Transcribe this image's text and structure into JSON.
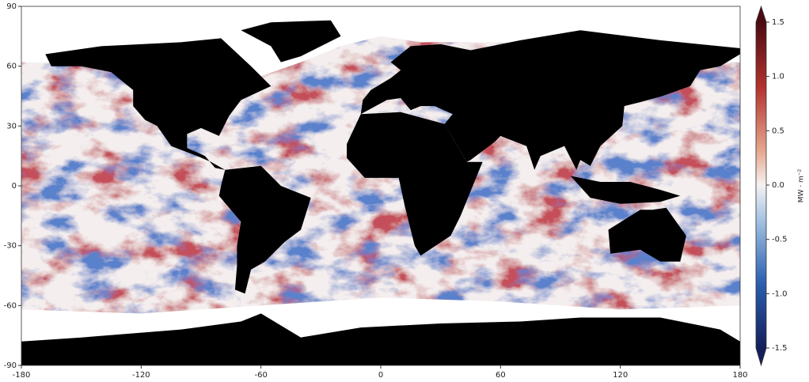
{
  "chart_data": {
    "type": "map",
    "xlim": [
      -180,
      180
    ],
    "ylim": [
      -90,
      90
    ],
    "xticks": [
      -180,
      -120,
      -60,
      0,
      60,
      120,
      180
    ],
    "yticks": [
      90,
      60,
      30,
      0,
      -30,
      -60,
      -90
    ],
    "colorbar": {
      "label": "MW · m⁻²",
      "lim": [
        -1.5,
        1.5
      ],
      "ticks": [
        -1.5,
        {
          "value": -1,
          "label": "-1.0"
        },
        -0.5,
        {
          "value": 0,
          "label": "0.0"
        },
        0.5,
        {
          "value": 1,
          "label": "1.0"
        },
        1.5
      ]
    }
  }
}
